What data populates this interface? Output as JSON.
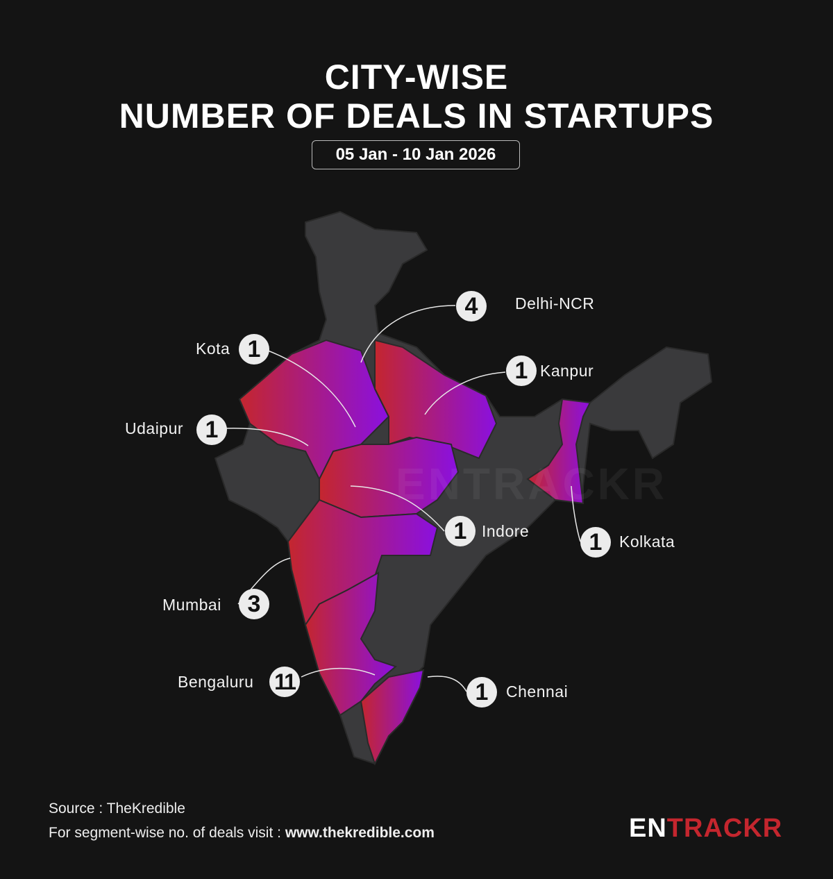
{
  "title_line1": "CITY-WISE",
  "title_line2": "NUMBER OF DEALS IN STARTUPS",
  "date_range": "05 Jan - 10 Jan 2026",
  "colors": {
    "background": "#141414",
    "map_base": "#3a3a3c",
    "gradient_start": "#c4262e",
    "gradient_end": "#8a10e0",
    "logo_red": "#c4262e"
  },
  "cities": [
    {
      "name": "Delhi-NCR",
      "deals": "4"
    },
    {
      "name": "Kota",
      "deals": "1"
    },
    {
      "name": "Kanpur",
      "deals": "1"
    },
    {
      "name": "Udaipur",
      "deals": "1"
    },
    {
      "name": "Indore",
      "deals": "1"
    },
    {
      "name": "Kolkata",
      "deals": "1"
    },
    {
      "name": "Mumbai",
      "deals": "3"
    },
    {
      "name": "Bengaluru",
      "deals": "11"
    },
    {
      "name": "Chennai",
      "deals": "1"
    }
  ],
  "footer": {
    "source": "Source : TheKredible",
    "visit_text": "For segment-wise no. of deals visit : ",
    "visit_url": "www.thekredible.com"
  },
  "logo": {
    "part1": "EN",
    "part2": "TRACKR"
  }
}
